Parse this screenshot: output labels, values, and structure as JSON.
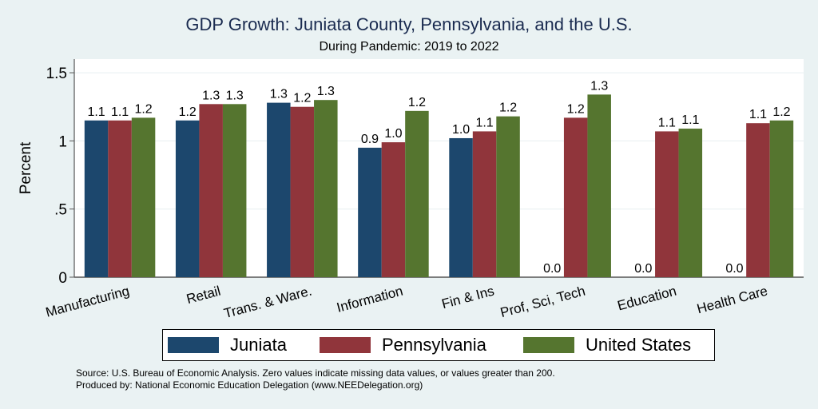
{
  "chart_data": {
    "type": "bar",
    "title": "GDP Growth: Juniata County, Pennsylvania, and the U.S.",
    "subtitle": "During Pandemic: 2019 to 2022",
    "xlabel": "",
    "ylabel": "Percent",
    "ylim": [
      0,
      1.6
    ],
    "yticks": [
      0,
      0.5,
      1,
      1.5
    ],
    "ytick_labels": [
      "0",
      ".5",
      "1",
      "1.5"
    ],
    "grid": true,
    "categories": [
      "Manufacturing",
      "Retail",
      "Trans. & Ware.",
      "Information",
      "Fin & Ins",
      "Prof, Sci, Tech",
      "Education",
      "Health Care"
    ],
    "series": [
      {
        "name": "Juniata",
        "color": "#1c476d",
        "values": [
          1.15,
          1.15,
          1.28,
          0.95,
          1.02,
          0.0,
          0.0,
          0.0
        ],
        "labels": [
          "1.1",
          "1.2",
          "1.3",
          "0.9",
          "1.0",
          "0.0",
          "0.0",
          "0.0"
        ]
      },
      {
        "name": "Pennsylvania",
        "color": "#90353b",
        "values": [
          1.15,
          1.27,
          1.25,
          0.99,
          1.07,
          1.17,
          1.07,
          1.13
        ],
        "labels": [
          "1.1",
          "1.3",
          "1.2",
          "1.0",
          "1.1",
          "1.2",
          "1.1",
          "1.1"
        ]
      },
      {
        "name": "United States",
        "color": "#55752f",
        "values": [
          1.17,
          1.27,
          1.3,
          1.22,
          1.18,
          1.34,
          1.09,
          1.15
        ],
        "labels": [
          "1.2",
          "1.3",
          "1.3",
          "1.2",
          "1.2",
          "1.3",
          "1.1",
          "1.2"
        ]
      }
    ],
    "legend_position": "bottom"
  },
  "notes": {
    "source": "Source: U.S. Bureau of Economic Analysis. Zero values indicate missing data values, or values greater than 200.",
    "produced": "Produced by: National Economic Education Delegation (www.NEEDelegation.org)"
  }
}
